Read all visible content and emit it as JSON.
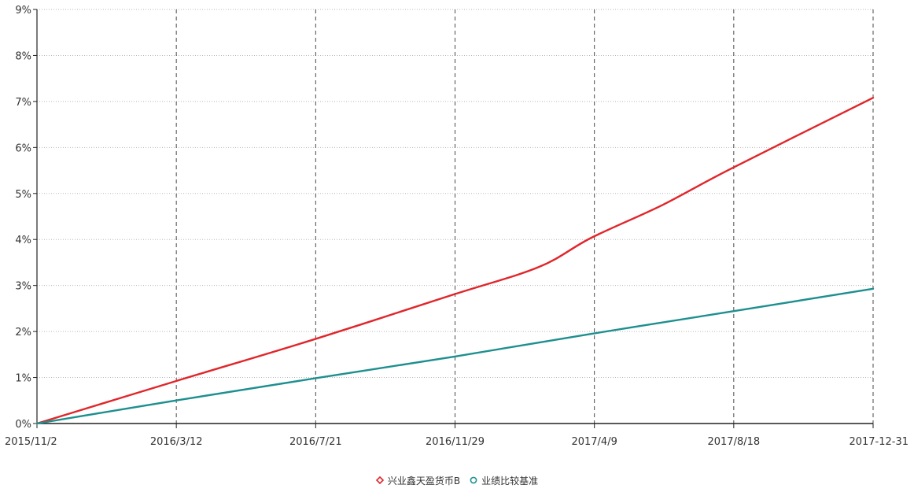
{
  "chart_data": {
    "type": "line",
    "x_tick_labels": [
      "2015/11/2",
      "2016/3/12",
      "2016/7/21",
      "2016/11/29",
      "2017/4/9",
      "2017/8/18",
      "2017-12-31"
    ],
    "y_tick_labels": [
      "0%",
      "1%",
      "2%",
      "3%",
      "4%",
      "5%",
      "6%",
      "7%",
      "8%",
      "9%"
    ],
    "xlim": [
      "2015-11-02",
      "2017-12-31"
    ],
    "ylim": [
      0,
      9
    ],
    "y_unit": "%",
    "grid": {
      "vertical": "dashed",
      "horizontal": "dotted"
    },
    "legend_position": "bottom-center",
    "series": [
      {
        "name": "兴业鑫天盈货币B",
        "color": "#e0262b",
        "x": [
          "2015-11-02",
          "2016-03-12",
          "2016-07-21",
          "2016-11-29",
          "2017-02-18",
          "2017-04-09",
          "2017-06-15",
          "2017-08-18",
          "2017-12-31"
        ],
        "y": [
          0.0,
          0.92,
          1.83,
          2.8,
          3.4,
          4.04,
          4.75,
          5.53,
          7.08
        ]
      },
      {
        "name": "业绩比较基准",
        "color": "#1e8f8f",
        "x": [
          "2015-11-02",
          "2016-03-12",
          "2016-07-21",
          "2016-11-29",
          "2017-04-09",
          "2017-08-18",
          "2017-12-31"
        ],
        "y": [
          0.0,
          0.5,
          0.98,
          1.45,
          1.95,
          2.43,
          2.93
        ]
      }
    ]
  }
}
